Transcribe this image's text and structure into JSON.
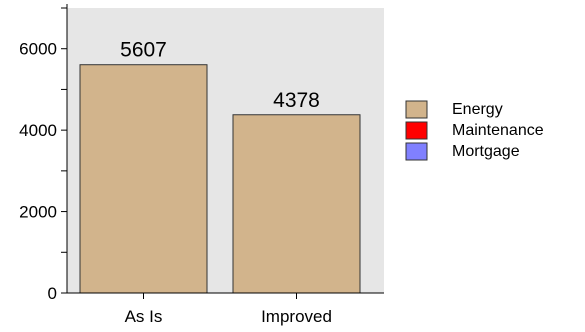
{
  "chart_data": {
    "type": "bar",
    "categories": [
      "As Is",
      "Improved"
    ],
    "series": [
      {
        "name": "Energy",
        "values": [
          5607,
          4378
        ],
        "color": "#d2b48c"
      },
      {
        "name": "Maintenance",
        "values": [
          0,
          0
        ],
        "color": "#ff0000"
      },
      {
        "name": "Mortgage",
        "values": [
          0,
          0
        ],
        "color": "#8080ff"
      }
    ],
    "data_labels": [
      "5607",
      "4378"
    ],
    "ylim": [
      0,
      7000
    ],
    "yticks": [
      0,
      2000,
      4000,
      6000
    ],
    "ytick_labels": [
      "0",
      "2000",
      "4000",
      "6000"
    ],
    "stacked": true,
    "plot_background": "#e6e6e6",
    "legend_position": "right"
  }
}
